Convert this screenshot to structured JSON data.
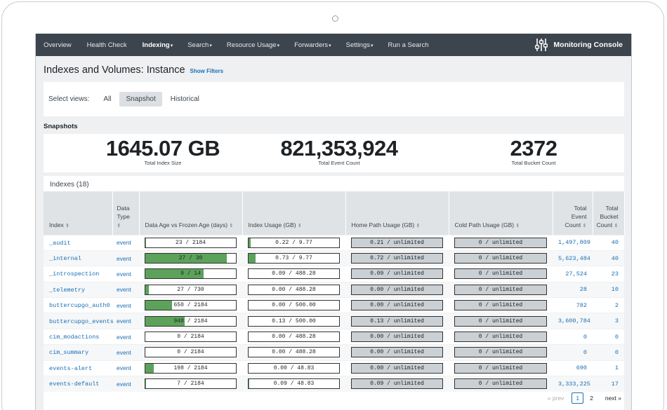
{
  "nav": {
    "items": [
      {
        "label": "Overview",
        "caret": ""
      },
      {
        "label": "Health Check",
        "caret": ""
      },
      {
        "label": "Indexing",
        "caret": "▾"
      },
      {
        "label": "Search",
        "caret": "▾"
      },
      {
        "label": "Resource Usage",
        "caret": "▾"
      },
      {
        "label": "Forwarders",
        "caret": "▾"
      },
      {
        "label": "Settings",
        "caret": "▾"
      },
      {
        "label": "Run a Search",
        "caret": ""
      }
    ],
    "brand": "Monitoring Console"
  },
  "page": {
    "title": "Indexes and Volumes: Instance",
    "show_filters": "Show Filters"
  },
  "views": {
    "label": "Select views:",
    "options": [
      "All",
      "Snapshot",
      "Historical"
    ],
    "selected": "Snapshot"
  },
  "snapshots": {
    "title": "Snapshots",
    "kpis": [
      {
        "value": "1645.07 GB",
        "label": "Total Index Size"
      },
      {
        "value": "821,353,924",
        "label": "Total Event Count"
      },
      {
        "value": "2372",
        "label": "Total Bucket Count"
      }
    ]
  },
  "indexes": {
    "title": "Indexes (18)",
    "headers": {
      "index": "Index",
      "data_type_1": "Data",
      "data_type_2": "Type",
      "data_age": "Data Age vs Frozen Age (days)",
      "index_usage": "Index Usage (GB)",
      "home_path": "Home Path Usage (GB)",
      "cold_path": "Cold Path Usage (GB)",
      "event_count_1": "Total",
      "event_count_2": "Event",
      "event_count_3": "Count",
      "bucket_count_1": "Total",
      "bucket_count_2": "Bucket",
      "bucket_count_3": "Count"
    },
    "rows": [
      {
        "name": "_audit",
        "type": "event",
        "age": "23 / 2184",
        "age_fill": 0.011,
        "usage": "0.22 / 9.77",
        "usage_fill": 0.023,
        "home": "0.21 / unlimited",
        "cold": "0 / unlimited",
        "events": "1,497,809",
        "buckets": "40"
      },
      {
        "name": "_internal",
        "type": "event",
        "age": "27 / 30",
        "age_fill": 0.9,
        "usage": "0.73 / 9.77",
        "usage_fill": 0.075,
        "home": "0.72 / unlimited",
        "cold": "0 / unlimited",
        "events": "5,623,484",
        "buckets": "40"
      },
      {
        "name": "_introspection",
        "type": "event",
        "age": "9 / 14",
        "age_fill": 0.64,
        "usage": "0.09 / 488.28",
        "usage_fill": 0.0,
        "home": "0.09 / unlimited",
        "cold": "0 / unlimited",
        "events": "27,524",
        "buckets": "23"
      },
      {
        "name": "_telemetry",
        "type": "event",
        "age": "27 / 730",
        "age_fill": 0.037,
        "usage": "0.00 / 488.28",
        "usage_fill": 0.0,
        "home": "0.00 / unlimited",
        "cold": "0 / unlimited",
        "events": "28",
        "buckets": "10"
      },
      {
        "name": "buttercupgo_auth0",
        "type": "event",
        "age": "650 / 2184",
        "age_fill": 0.298,
        "usage": "0.00 / 500.00",
        "usage_fill": 0.0,
        "home": "0.00 / unlimited",
        "cold": "0 / unlimited",
        "events": "782",
        "buckets": "2"
      },
      {
        "name": "buttercupgo_events",
        "type": "event",
        "age": "948 / 2184",
        "age_fill": 0.434,
        "usage": "0.13 / 500.00",
        "usage_fill": 0.0,
        "home": "0.13 / unlimited",
        "cold": "0 / unlimited",
        "events": "3,600,784",
        "buckets": "3"
      },
      {
        "name": "cim_modactions",
        "type": "event",
        "age": "0 / 2184",
        "age_fill": 0.0,
        "usage": "0.00 / 488.28",
        "usage_fill": 0.0,
        "home": "0.00 / unlimited",
        "cold": "0 / unlimited",
        "events": "0",
        "buckets": "0"
      },
      {
        "name": "cim_summary",
        "type": "event",
        "age": "0 / 2184",
        "age_fill": 0.0,
        "usage": "0.00 / 488.28",
        "usage_fill": 0.0,
        "home": "0.00 / unlimited",
        "cold": "0 / unlimited",
        "events": "0",
        "buckets": "0"
      },
      {
        "name": "events-alert",
        "type": "event",
        "age": "198 / 2184",
        "age_fill": 0.091,
        "usage": "0.00 / 48.83",
        "usage_fill": 0.0,
        "home": "0.00 / unlimited",
        "cold": "0 / unlimited",
        "events": "690",
        "buckets": "1"
      },
      {
        "name": "events-default",
        "type": "event",
        "age": "7 / 2184",
        "age_fill": 0.003,
        "usage": "0.09 / 48.83",
        "usage_fill": 0.002,
        "home": "0.09 / unlimited",
        "cold": "0 / unlimited",
        "events": "3,333,225",
        "buckets": "17"
      }
    ]
  },
  "pager": {
    "prev": "« prev",
    "pages": [
      "1",
      "2"
    ],
    "current": "1",
    "next": "next »"
  },
  "colors": {
    "nav_bg": "#3c444d",
    "link": "#1a6fb5",
    "bar_fill": "#5ca25a",
    "bar_grey": "#cbd0d4"
  }
}
